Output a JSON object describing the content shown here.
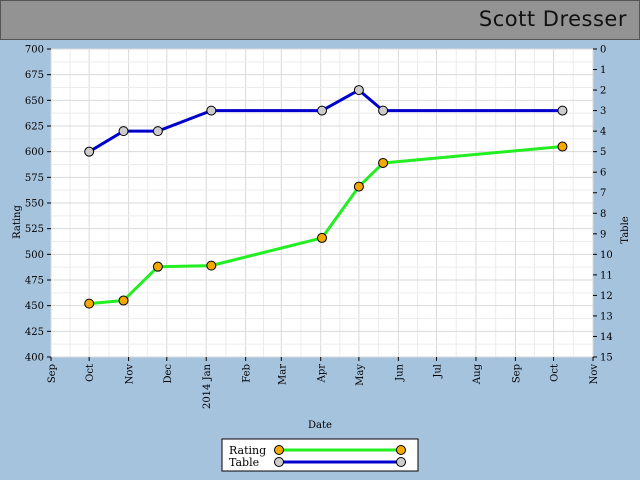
{
  "header": {
    "title": "Scott Dresser"
  },
  "chart_data": {
    "type": "line",
    "xlabel": "Date",
    "ylabel": "Rating",
    "y2label": "Table",
    "ylim": [
      400,
      700
    ],
    "y2lim": [
      0,
      15
    ],
    "y2_inverted": true,
    "x_range_months": [
      "2013-09",
      "2014-11"
    ],
    "x_tick_labels": [
      "Sep",
      "Oct",
      "Nov",
      "Dec",
      "2014 Jan",
      "Feb",
      "Mar",
      "Apr",
      "May",
      "Jun",
      "Jul",
      "Aug",
      "Sep",
      "Oct",
      "Nov"
    ],
    "y_ticks": [
      400,
      425,
      450,
      475,
      500,
      525,
      550,
      575,
      600,
      625,
      650,
      675,
      700
    ],
    "y2_ticks": [
      0,
      1,
      2,
      3,
      4,
      5,
      6,
      7,
      8,
      9,
      10,
      11,
      12,
      13,
      14,
      15
    ],
    "grid": true,
    "legend_position": "bottom-center",
    "series": [
      {
        "name": "Rating",
        "axis": "left",
        "color": "#22ee22",
        "marker_color": "#f5a800",
        "points": [
          {
            "x": "2013-10-01",
            "y": 452
          },
          {
            "x": "2013-10-28",
            "y": 455
          },
          {
            "x": "2013-11-24",
            "y": 488
          },
          {
            "x": "2014-01-05",
            "y": 489
          },
          {
            "x": "2014-04-02",
            "y": 516
          },
          {
            "x": "2014-05-01",
            "y": 566
          },
          {
            "x": "2014-05-20",
            "y": 589
          },
          {
            "x": "2014-10-08",
            "y": 605
          }
        ]
      },
      {
        "name": "Table",
        "axis": "right",
        "color": "#0000cc",
        "marker_color": "#cccccc",
        "points": [
          {
            "x": "2013-10-01",
            "y": 5
          },
          {
            "x": "2013-10-28",
            "y": 4
          },
          {
            "x": "2013-11-24",
            "y": 4
          },
          {
            "x": "2014-01-05",
            "y": 3
          },
          {
            "x": "2014-04-02",
            "y": 3
          },
          {
            "x": "2014-05-01",
            "y": 2
          },
          {
            "x": "2014-05-20",
            "y": 3
          },
          {
            "x": "2014-10-08",
            "y": 3
          }
        ]
      }
    ]
  }
}
